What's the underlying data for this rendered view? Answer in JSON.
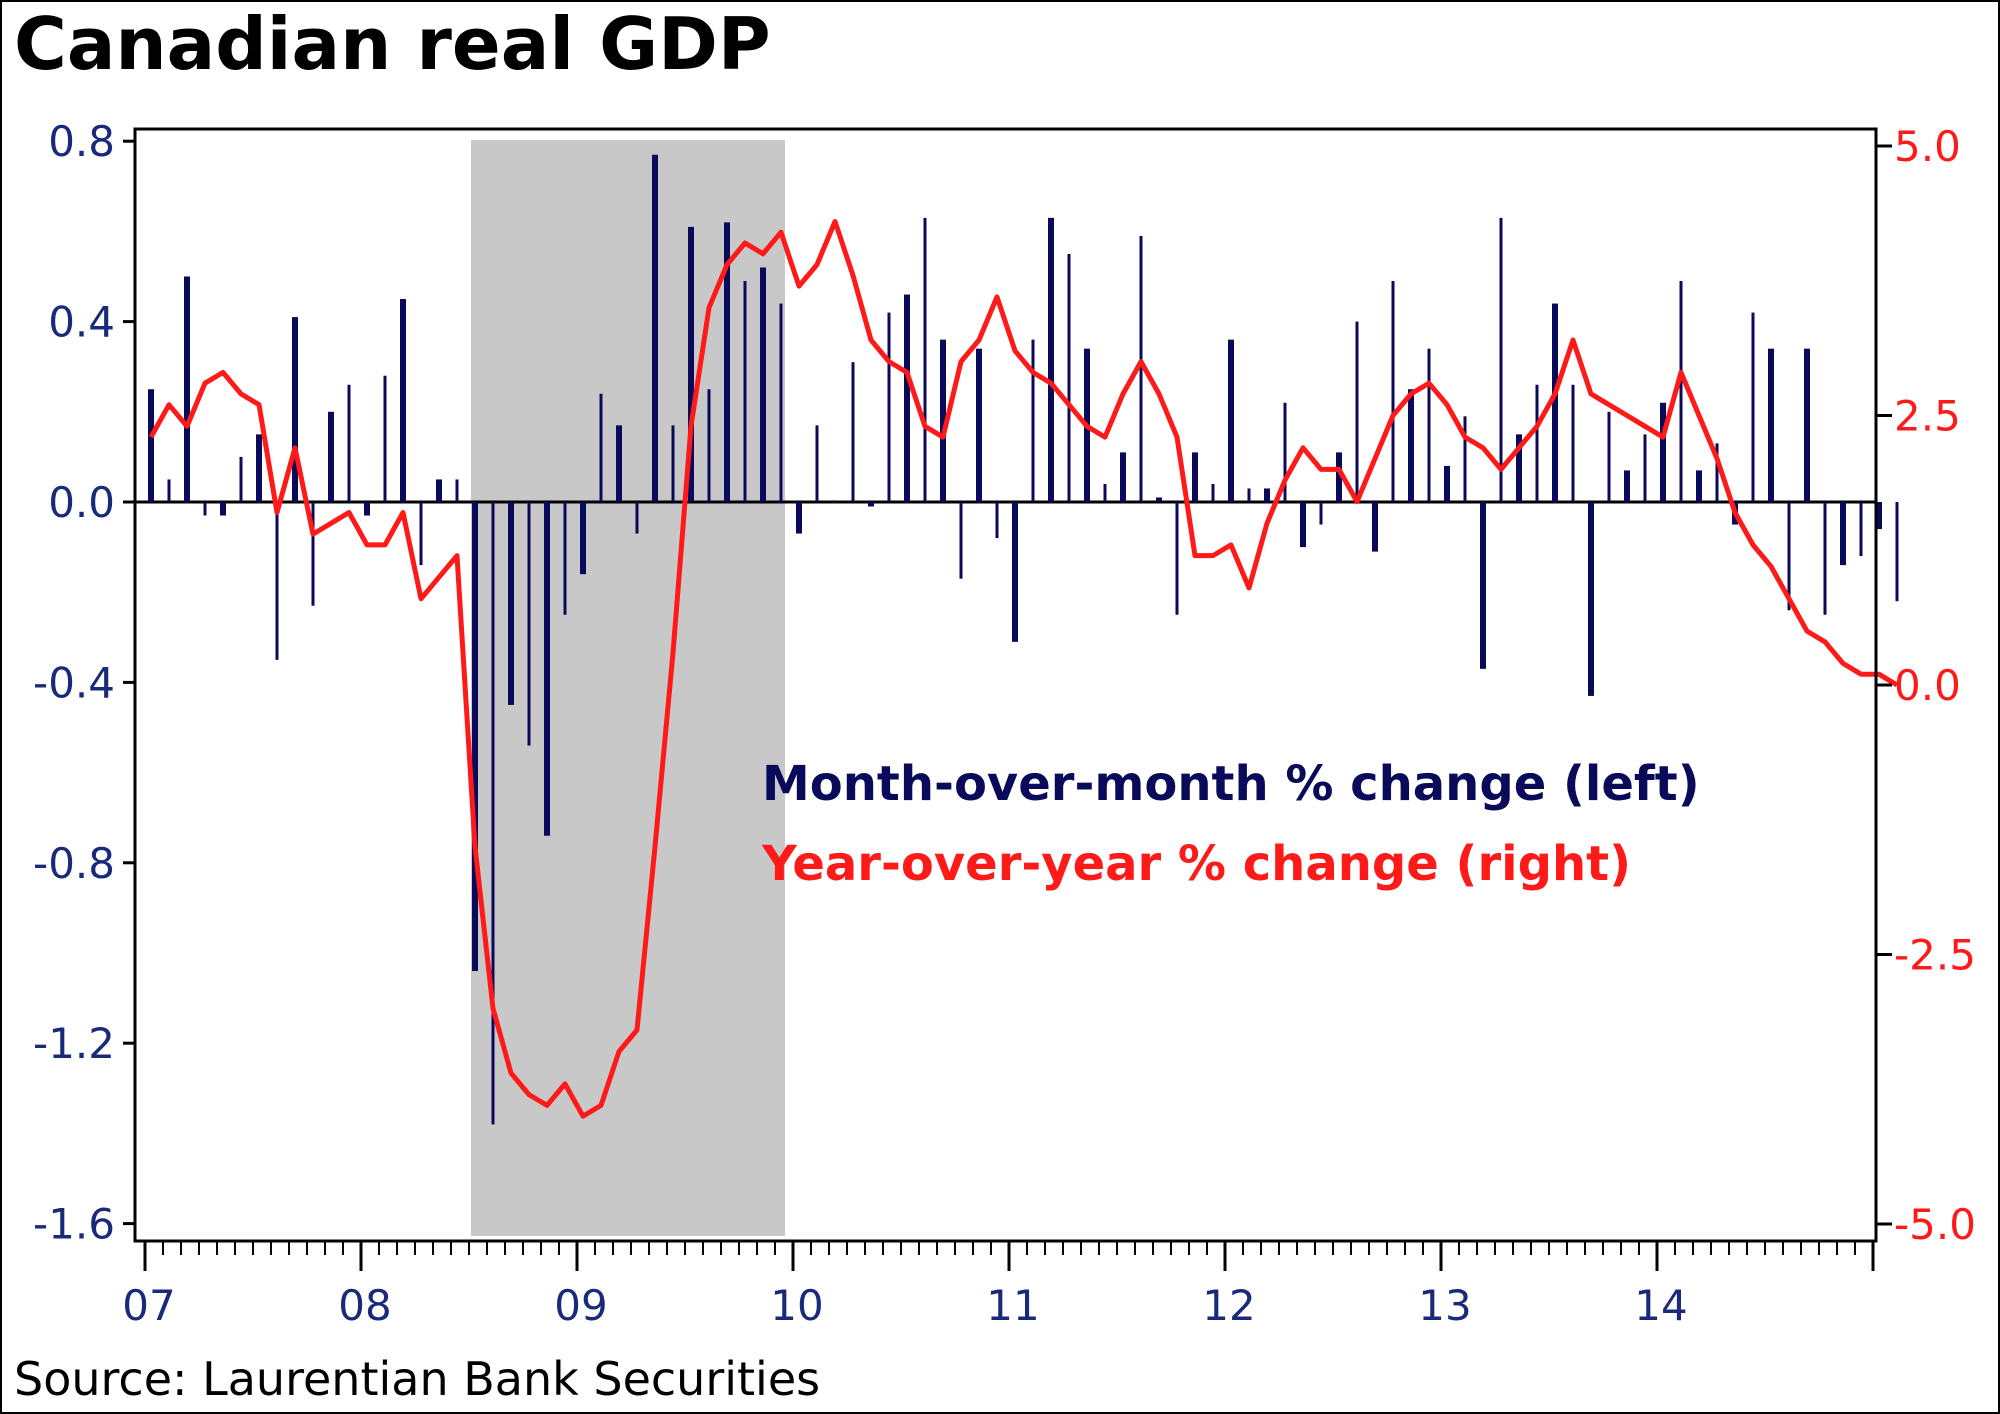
{
  "chart_data": {
    "type": "bar+line",
    "title": "Canadian real GDP",
    "source": "Source: Laurentian Bank Securities",
    "x_tick_labels": [
      "07",
      "08",
      "09",
      "10",
      "11",
      "12",
      "13",
      "14"
    ],
    "start": "2007-01",
    "recession_shading": {
      "from": "2008-07",
      "to": "2009-12"
    },
    "left_axis": {
      "label": "Month-over-month % change",
      "ylim": [
        -1.6,
        0.8
      ],
      "ticks": [
        "0.8",
        "0.4",
        "0.0",
        "-0.4",
        "-0.8",
        "-1.2",
        "-1.6"
      ],
      "tick_values": [
        0.8,
        0.4,
        0.0,
        -0.4,
        -0.8,
        -1.2,
        -1.6
      ]
    },
    "right_axis": {
      "label": "Year-over-year % change",
      "ylim": [
        -5.0,
        5.0
      ],
      "ticks": [
        "5.0",
        "2.5",
        "0.0",
        "-2.5",
        "-5.0"
      ],
      "tick_values": [
        5.0,
        2.5,
        0.0,
        -2.5,
        -5.0
      ]
    },
    "series": [
      {
        "name": "Month-over-month % change (left)",
        "kind": "bar",
        "axis": "left",
        "color": "#0a0a5a",
        "values": [
          0.25,
          0.05,
          0.5,
          -0.03,
          -0.03,
          0.1,
          0.15,
          -0.35,
          0.41,
          -0.23,
          0.2,
          0.26,
          -0.03,
          0.28,
          0.45,
          -0.14,
          0.05,
          0.05,
          -1.04,
          -1.38,
          -0.45,
          -0.54,
          -0.74,
          -0.25,
          -0.16,
          0.24,
          0.17,
          -0.07,
          0.77,
          0.17,
          0.61,
          0.25,
          0.62,
          0.49,
          0.52,
          0.44,
          -0.07,
          0.17,
          0.0,
          0.31,
          -0.01,
          0.42,
          0.46,
          0.63,
          0.36,
          -0.17,
          0.34,
          -0.08,
          -0.31,
          0.36,
          0.63,
          0.55,
          0.34,
          0.04,
          0.11,
          0.59,
          0.01,
          -0.25,
          0.11,
          0.04,
          0.36,
          0.03,
          0.03,
          0.22,
          -0.1,
          -0.05,
          0.11,
          0.4,
          -0.11,
          0.49,
          0.25,
          0.34,
          0.08,
          0.19,
          -0.37,
          0.63,
          0.15,
          0.26,
          0.44,
          0.26,
          -0.43,
          0.2,
          0.07,
          0.15,
          0.22,
          0.49,
          0.07,
          0.13,
          -0.05,
          0.42,
          0.34,
          -0.24,
          0.34,
          -0.25,
          -0.14,
          -0.12,
          -0.06,
          -0.22
        ]
      },
      {
        "name": "Year-over-year % change (right)",
        "kind": "line",
        "axis": "right",
        "color": "#ff1a1a",
        "values": [
          2.3,
          2.6,
          2.4,
          2.8,
          2.9,
          2.7,
          2.6,
          1.6,
          2.2,
          1.4,
          1.5,
          1.6,
          1.3,
          1.3,
          1.6,
          0.8,
          1.0,
          1.2,
          -1.5,
          -3.0,
          -3.6,
          -3.8,
          -3.9,
          -3.7,
          -4.0,
          -3.9,
          -3.4,
          -3.2,
          -1.5,
          0.3,
          2.4,
          3.5,
          3.9,
          4.1,
          4.0,
          4.2,
          3.7,
          3.9,
          4.3,
          3.8,
          3.2,
          3.0,
          2.9,
          2.4,
          2.3,
          3.0,
          3.2,
          3.6,
          3.1,
          2.9,
          2.8,
          2.6,
          2.4,
          2.3,
          2.7,
          3.0,
          2.7,
          2.3,
          1.2,
          1.2,
          1.3,
          0.9,
          1.5,
          1.9,
          2.2,
          2.0,
          2.0,
          1.7,
          2.1,
          2.5,
          2.7,
          2.8,
          2.6,
          2.3,
          2.2,
          2.0,
          2.2,
          2.4,
          2.7,
          3.2,
          2.7,
          2.6,
          2.5,
          2.4,
          2.3,
          2.9,
          2.5,
          2.1,
          1.6,
          1.3,
          1.1,
          0.8,
          0.5,
          0.4,
          0.2,
          0.1,
          0.1,
          0.0
        ]
      }
    ],
    "legend": {
      "line1": "Month-over-month % change (left)",
      "line2": "Year-over-year % change (right)",
      "placement": "center-right"
    }
  }
}
